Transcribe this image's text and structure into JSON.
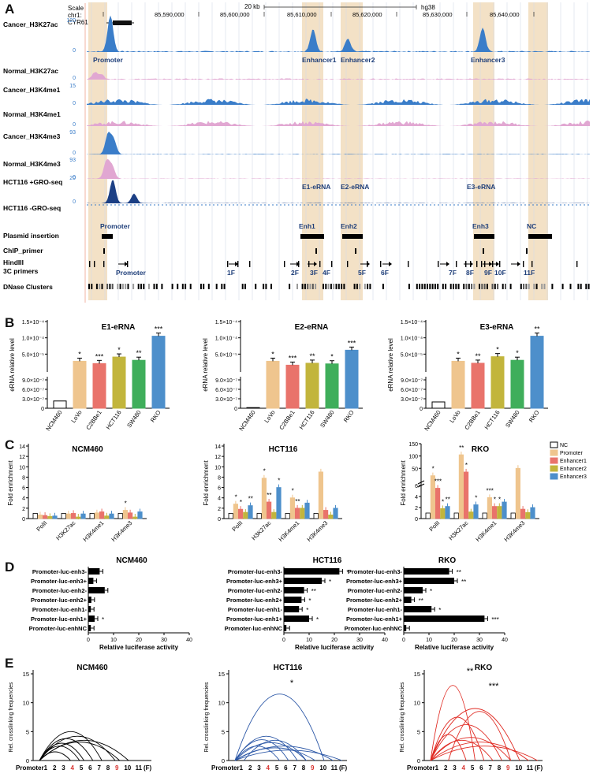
{
  "panel_letters": [
    "A",
    "B",
    "C",
    "D",
    "E"
  ],
  "colors": {
    "cancer": "#3a7dc9",
    "normal": "#e1a7d2",
    "gro": "#1b3f85",
    "highlight": "#f3e1c6",
    "label_blue": "#1f3f7a",
    "nc": "#ffffff",
    "promoter": "#efc58e",
    "enhancer1": "#e9736b",
    "enhancer2": "#c2b53c",
    "enhancer3": "#4d8fcb",
    "ncm460": "#000000",
    "hct116": "#2a56a6",
    "rko": "#e02a22",
    "red_label": "#d8322d"
  },
  "browser": {
    "scale_label": "Scale",
    "chrom_label": "chr1:",
    "gene": "CYR61",
    "scale_bar": "20 kb",
    "assembly": "hg38",
    "coords": [
      "85,590,000",
      "85,600,000",
      "85,610,000",
      "85,620,000",
      "85,630,000",
      "85,640,000"
    ],
    "tracks": [
      {
        "label": "Cancer_H3K27ac",
        "max": "120",
        "min": "0"
      },
      {
        "label": "Normal_H3K27ac",
        "max": "",
        "min": "0"
      },
      {
        "label": "Cancer_H3K4me1",
        "max": "15",
        "min": "0"
      },
      {
        "label": "Normal_H3K4me1",
        "max": "",
        "min": "0"
      },
      {
        "label": "Cancer_H3K4me3",
        "max": "93",
        "min": "0"
      },
      {
        "label": "Normal_H3K4me3",
        "max": "93",
        "min": "0"
      },
      {
        "label": "HCT116 +GRO-seq",
        "max": "20",
        "min": "0"
      },
      {
        "label": "HCT116 -GRO-seq",
        "max": "",
        "min": ""
      },
      {
        "label": "Plasmid insertion",
        "max": "",
        "min": ""
      },
      {
        "label": "ChIP_primer",
        "max": "",
        "min": ""
      },
      {
        "label": "HindIII\n3C primers",
        "max": "",
        "min": ""
      },
      {
        "label": "DNase Clusters",
        "max": "",
        "min": ""
      }
    ],
    "hindiii_label": "HindIII",
    "primers_label": "3C primers",
    "region_labels": [
      "Promoter",
      "Enhancer1",
      "Enhancer2",
      "Enhancer3"
    ],
    "erna_labels": [
      "E1-eRNA",
      "E2-eRNA",
      "E3-eRNA"
    ],
    "plasmid_labels": [
      "Promoter",
      "Enh1",
      "Enh2",
      "Enh3",
      "NC"
    ],
    "primer_labels": [
      "Promoter",
      "1F",
      "2F",
      "3F",
      "4F",
      "5F",
      "6F",
      "7F",
      "8F",
      "9F",
      "10F",
      "11F"
    ]
  },
  "panel_b": {
    "ylabel": "eRNA relative level",
    "categories": [
      "NCM460",
      "LoVo",
      "C2BBe1",
      "HCT116",
      "SW480",
      "RKO"
    ],
    "upper_ticks": [
      "5.0×10⁻⁵",
      "1.0×10⁻⁴",
      "1.5×10⁻⁴"
    ],
    "lower_ticks": [
      "0",
      "3.0×10⁻⁷",
      "6.0×10⁻⁷",
      "9.0×10⁻⁷"
    ],
    "charts": [
      {
        "title": "E1-eRNA",
        "sig": [
          "",
          "*",
          "***",
          "*",
          "**",
          "***"
        ]
      },
      {
        "title": "E2-eRNA",
        "sig": [
          "",
          "*",
          "***",
          "**",
          "*",
          "***"
        ]
      },
      {
        "title": "E3-eRNA",
        "sig": [
          "",
          "*",
          "**",
          "*",
          "*",
          "**"
        ]
      }
    ]
  },
  "panel_c": {
    "ylabel": "Fold enrichment",
    "categories": [
      "PolII",
      "H3K27ac",
      "H3K4me1",
      "H3K4me3"
    ],
    "legend": [
      "NC",
      "Promoter",
      "Enhancer1",
      "Enhancer2",
      "Enhancer3"
    ],
    "charts": [
      {
        "title": "NCM460",
        "ticks": [
          "0",
          "2",
          "4",
          "6",
          "8",
          "10",
          "12",
          "14"
        ],
        "sig": [
          {
            "label": "*"
          }
        ]
      },
      {
        "title": "HCT116",
        "ticks": [
          "0",
          "2",
          "4",
          "6",
          "8",
          "10",
          "12",
          "14"
        ],
        "sig": [
          {
            "label": "*"
          },
          {
            "label": "*"
          },
          {
            "label": "**"
          },
          {
            "label": "*"
          },
          {
            "label": "**"
          },
          {
            "label": "*"
          },
          {
            "label": "*"
          },
          {
            "label": "**"
          }
        ]
      },
      {
        "title": "RKO",
        "ticks": [
          "0",
          "2",
          "4",
          "6",
          "50",
          "100",
          "150"
        ],
        "sig": [
          {
            "label": "*"
          },
          {
            "label": "***"
          },
          {
            "label": "*"
          },
          {
            "label": "**"
          },
          {
            "label": "**"
          },
          {
            "label": "*"
          },
          {
            "label": "*"
          },
          {
            "label": "***"
          },
          {
            "label": "*"
          },
          {
            "label": "*"
          }
        ]
      }
    ]
  },
  "panel_d": {
    "xlabel": "Relative luciferase activity",
    "ticks": [
      "0",
      "10",
      "20",
      "30",
      "40"
    ],
    "constructs": [
      "Promoter-luc-enh3-",
      "Promoter-luc-enh3+",
      "Promoter-luc-enh2-",
      "Promoter-luc-enh2+",
      "Promoter-luc-enh1-",
      "Promoter-luc-enh1+",
      "Promoter-luc-enhNC"
    ],
    "charts": [
      {
        "title": "NCM460",
        "sig": [
          "",
          "",
          "",
          "",
          "",
          "*",
          ""
        ]
      },
      {
        "title": "HCT116",
        "sig": [
          "*",
          "*",
          "**",
          "*",
          "*",
          "*",
          ""
        ]
      },
      {
        "title": "RKO",
        "sig": [
          "**",
          "**",
          "*",
          "**",
          "*",
          "***",
          ""
        ]
      }
    ]
  },
  "panel_e": {
    "ylabel": "Rel. crosslinking frequencies",
    "ticks": [
      "0",
      "5",
      "10",
      "15"
    ],
    "xlabels": [
      "Promoter",
      "1",
      "2",
      "3",
      "4",
      "5",
      "6",
      "7",
      "8",
      "9",
      "10",
      "11",
      "(F)"
    ],
    "charts": [
      {
        "title": "NCM460",
        "star": ""
      },
      {
        "title": "HCT116",
        "star": "*"
      },
      {
        "title": "RKO",
        "star": "**",
        "star2": "***"
      }
    ]
  },
  "chart_data": [
    {
      "type": "bar",
      "title": "E1-eRNA",
      "ylabel": "eRNA relative level",
      "categories": [
        "NCM460",
        "LoVo",
        "C2BBe1",
        "HCT116",
        "SW480",
        "RKO"
      ],
      "values": [
        2.3e-07,
        2.8e-05,
        2.1e-05,
        4.1e-05,
        3.1e-05,
        0.000105
      ]
    },
    {
      "type": "bar",
      "title": "E2-eRNA",
      "ylabel": "eRNA relative level",
      "categories": [
        "NCM460",
        "LoVo",
        "C2BBe1",
        "HCT116",
        "SW480",
        "RKO"
      ],
      "values": [
        2e-08,
        2.8e-05,
        1.6e-05,
        2.2e-05,
        2e-05,
        6.2e-05
      ]
    },
    {
      "type": "bar",
      "title": "E3-eRNA",
      "ylabel": "eRNA relative level",
      "categories": [
        "NCM460",
        "LoVo",
        "C2BBe1",
        "HCT116",
        "SW480",
        "RKO"
      ],
      "values": [
        2e-07,
        2.8e-05,
        2.2e-05,
        4.2e-05,
        3.1e-05,
        0.000105
      ]
    },
    {
      "type": "bar",
      "title": "NCM460",
      "ylabel": "Fold enrichment",
      "categories": [
        "PolII",
        "H3K27ac",
        "H3K4me1",
        "H3K4me3"
      ],
      "series": [
        {
          "name": "NC",
          "values": [
            1,
            1,
            1,
            1
          ]
        },
        {
          "name": "Promoter",
          "values": [
            0.7,
            0.9,
            1.1,
            1.6
          ]
        },
        {
          "name": "Enhancer1",
          "values": [
            0.6,
            1.0,
            1.3,
            1.1
          ]
        },
        {
          "name": "Enhancer2",
          "values": [
            0.4,
            0.3,
            0.5,
            0.3
          ]
        },
        {
          "name": "Enhancer3",
          "values": [
            0.5,
            0.9,
            0.9,
            1.3
          ]
        }
      ],
      "ylim": [
        0,
        14
      ]
    },
    {
      "type": "bar",
      "title": "HCT116",
      "ylabel": "Fold enrichment",
      "categories": [
        "PolII",
        "H3K27ac",
        "H3K4me1",
        "H3K4me3"
      ],
      "series": [
        {
          "name": "NC",
          "values": [
            1,
            1,
            1,
            1
          ]
        },
        {
          "name": "Promoter",
          "values": [
            2.8,
            7.8,
            4.0,
            9.0
          ]
        },
        {
          "name": "Enhancer1",
          "values": [
            1.8,
            3.2,
            2.0,
            1.6
          ]
        },
        {
          "name": "Enhancer2",
          "values": [
            1.2,
            1.2,
            2.0,
            0.7
          ]
        },
        {
          "name": "Enhancer3",
          "values": [
            2.5,
            6.0,
            3.0,
            2.0
          ]
        }
      ],
      "ylim": [
        0,
        14
      ]
    },
    {
      "type": "bar",
      "title": "RKO",
      "ylabel": "Fold enrichment",
      "categories": [
        "PolII",
        "H3K27ac",
        "H3K4me1",
        "H3K4me3"
      ],
      "series": [
        {
          "name": "NC",
          "values": [
            1,
            1,
            1,
            1
          ]
        },
        {
          "name": "Promoter",
          "values": [
            20,
            105,
            3.8,
            50
          ]
        },
        {
          "name": "Enhancer1",
          "values": [
            5.5,
            35,
            2.2,
            1.7
          ]
        },
        {
          "name": "Enhancer2",
          "values": [
            1.8,
            1.2,
            2.2,
            1.1
          ]
        },
        {
          "name": "Enhancer3",
          "values": [
            2.2,
            2.5,
            3.0,
            2.0
          ]
        }
      ]
    },
    {
      "type": "bar",
      "title": "NCM460",
      "xlabel": "Relative luciferase activity",
      "categories": [
        "Promoter-luc-enh3-",
        "Promoter-luc-enh3+",
        "Promoter-luc-enh2-",
        "Promoter-luc-enh2+",
        "Promoter-luc-enh1-",
        "Promoter-luc-enh1+",
        "Promoter-luc-enhNC"
      ],
      "values": [
        4.5,
        2.0,
        6.5,
        1.2,
        1.0,
        2.5,
        1.0
      ],
      "xlim": [
        0,
        40
      ]
    },
    {
      "type": "bar",
      "title": "HCT116",
      "xlabel": "Relative luciferase activity",
      "categories": [
        "Promoter-luc-enh3-",
        "Promoter-luc-enh3+",
        "Promoter-luc-enh2-",
        "Promoter-luc-enh2+",
        "Promoter-luc-enh1-",
        "Promoter-luc-enh1+",
        "Promoter-luc-enhNC"
      ],
      "values": [
        22,
        15,
        8,
        7,
        6,
        10,
        1
      ],
      "xlim": [
        0,
        40
      ]
    },
    {
      "type": "bar",
      "title": "RKO",
      "xlabel": "Relative luciferase activity",
      "categories": [
        "Promoter-luc-enh3-",
        "Promoter-luc-enh3+",
        "Promoter-luc-enh2-",
        "Promoter-luc-enh2+",
        "Promoter-luc-enh1-",
        "Promoter-luc-enh1+",
        "Promoter-luc-enhNC"
      ],
      "values": [
        18,
        20,
        7.5,
        3,
        11,
        32,
        1
      ],
      "xlim": [
        0,
        40
      ]
    }
  ]
}
